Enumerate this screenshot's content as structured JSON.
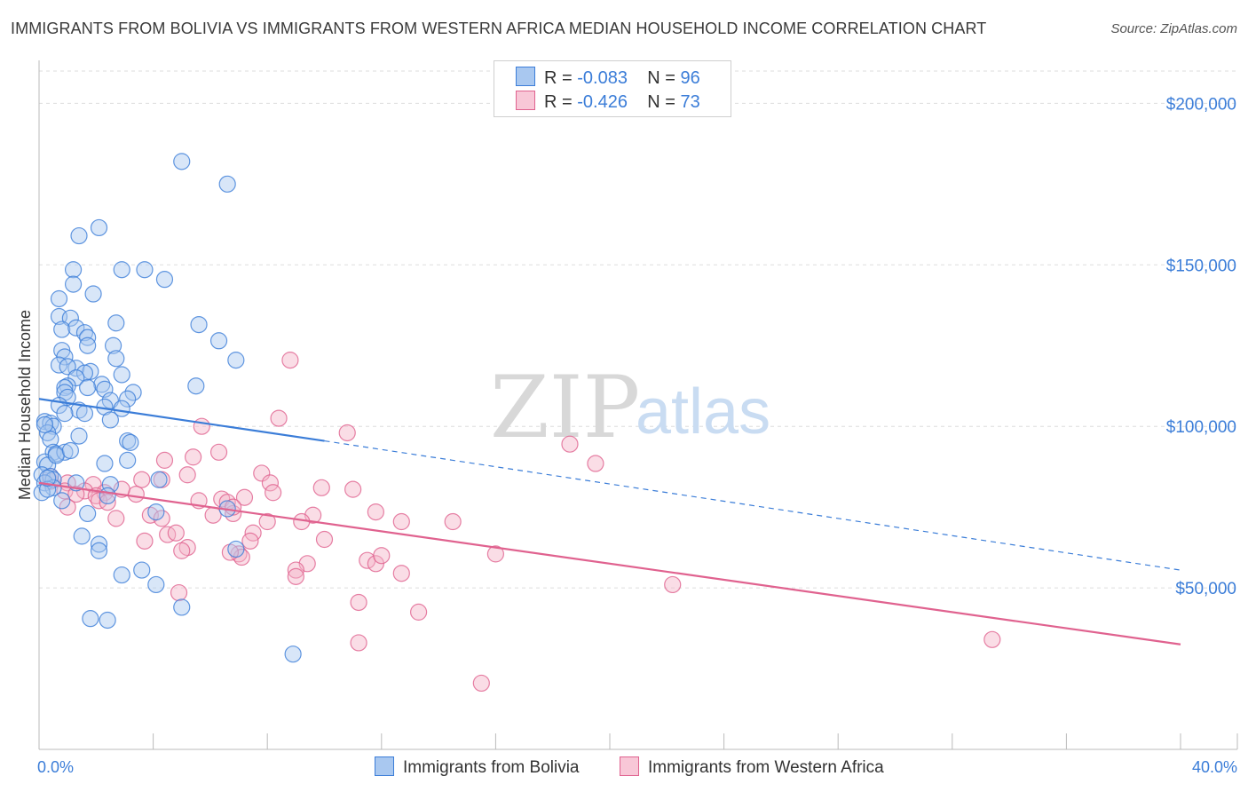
{
  "title": "IMMIGRANTS FROM BOLIVIA VS IMMIGRANTS FROM WESTERN AFRICA MEDIAN HOUSEHOLD INCOME CORRELATION CHART",
  "source": "Source: ZipAtlas.com",
  "watermark": {
    "zip": "ZIP",
    "atlas": "atlas"
  },
  "legend": {
    "rows": [
      {
        "r_label": "R =",
        "r_value": "-0.083",
        "n_label": "N =",
        "n_value": "96"
      },
      {
        "r_label": "R =",
        "r_value": "-0.426",
        "n_label": "N =",
        "n_value": "73"
      }
    ]
  },
  "bottom_legend": {
    "bolivia": "Immigrants from Bolivia",
    "wafrica": "Immigrants from Western Africa"
  },
  "colors": {
    "blue": "#3b7dd8",
    "blue_fill": "#a9c8f0",
    "pink": "#e0628f",
    "pink_fill": "#f4b3c8",
    "grid": "#dddddd"
  },
  "chart_data": {
    "type": "scatter",
    "title": "IMMIGRANTS FROM BOLIVIA VS IMMIGRANTS FROM WESTERN AFRICA MEDIAN HOUSEHOLD INCOME CORRELATION CHART",
    "ylabel": "Median Household Income",
    "xlabel": "",
    "xlim": [
      0,
      40
    ],
    "ylim": [
      0,
      210000
    ],
    "x_tick_labels": [
      "0.0%",
      "40.0%"
    ],
    "y_tick_labels": [
      "$50,000",
      "$100,000",
      "$150,000",
      "$200,000"
    ],
    "y_ticks": [
      50000,
      100000,
      150000,
      200000
    ],
    "grid": true,
    "legend_position": "top-center",
    "series": [
      {
        "name": "Immigrants from Bolivia",
        "color": "#3b7dd8",
        "trend": {
          "x": [
            0,
            10
          ],
          "y": [
            108500,
            95500
          ],
          "dashed_extension_to": [
            40,
            55500
          ]
        },
        "points": [
          [
            5.0,
            182000
          ],
          [
            6.6,
            175000
          ],
          [
            2.1,
            161500
          ],
          [
            1.4,
            159000
          ],
          [
            1.2,
            148500
          ],
          [
            2.9,
            148500
          ],
          [
            3.7,
            148500
          ],
          [
            4.4,
            145500
          ],
          [
            1.2,
            144000
          ],
          [
            0.7,
            139500
          ],
          [
            1.9,
            141000
          ],
          [
            0.7,
            134000
          ],
          [
            1.1,
            133500
          ],
          [
            2.7,
            132000
          ],
          [
            5.6,
            131500
          ],
          [
            0.8,
            130000
          ],
          [
            1.3,
            130500
          ],
          [
            1.6,
            129000
          ],
          [
            1.7,
            127500
          ],
          [
            6.3,
            126500
          ],
          [
            1.7,
            125000
          ],
          [
            2.6,
            125000
          ],
          [
            0.8,
            123500
          ],
          [
            2.7,
            121000
          ],
          [
            0.9,
            121500
          ],
          [
            6.9,
            120500
          ],
          [
            0.7,
            119000
          ],
          [
            1.3,
            118000
          ],
          [
            1.0,
            118500
          ],
          [
            1.8,
            117000
          ],
          [
            1.6,
            116500
          ],
          [
            2.9,
            116000
          ],
          [
            1.3,
            115000
          ],
          [
            1.0,
            112500
          ],
          [
            2.2,
            113000
          ],
          [
            0.9,
            112000
          ],
          [
            1.7,
            112000
          ],
          [
            2.3,
            111500
          ],
          [
            5.5,
            112500
          ],
          [
            0.9,
            110500
          ],
          [
            3.3,
            110500
          ],
          [
            1.0,
            109000
          ],
          [
            2.5,
            108000
          ],
          [
            3.1,
            108500
          ],
          [
            0.7,
            106500
          ],
          [
            2.3,
            106000
          ],
          [
            2.9,
            105500
          ],
          [
            1.4,
            105000
          ],
          [
            0.9,
            104000
          ],
          [
            1.6,
            104000
          ],
          [
            2.5,
            102000
          ],
          [
            0.2,
            101500
          ],
          [
            0.4,
            101000
          ],
          [
            0.5,
            100000
          ],
          [
            0.3,
            98000
          ],
          [
            1.4,
            97000
          ],
          [
            0.4,
            96000
          ],
          [
            3.1,
            95500
          ],
          [
            3.2,
            95000
          ],
          [
            0.5,
            92000
          ],
          [
            0.6,
            91500
          ],
          [
            0.9,
            92000
          ],
          [
            2.3,
            88500
          ],
          [
            3.1,
            89500
          ],
          [
            0.2,
            89000
          ],
          [
            0.3,
            88000
          ],
          [
            0.1,
            85000
          ],
          [
            0.4,
            84500
          ],
          [
            0.5,
            83500
          ],
          [
            4.2,
            83500
          ],
          [
            0.2,
            82500
          ],
          [
            1.3,
            82500
          ],
          [
            2.5,
            82000
          ],
          [
            0.5,
            81000
          ],
          [
            0.1,
            79500
          ],
          [
            2.4,
            78500
          ],
          [
            0.8,
            77000
          ],
          [
            1.7,
            73000
          ],
          [
            4.1,
            73500
          ],
          [
            6.6,
            74500
          ],
          [
            1.5,
            66000
          ],
          [
            2.1,
            63500
          ],
          [
            6.9,
            62000
          ],
          [
            2.1,
            61500
          ],
          [
            2.9,
            54000
          ],
          [
            3.6,
            55500
          ],
          [
            4.1,
            51000
          ],
          [
            5.0,
            44000
          ],
          [
            1.8,
            40500
          ],
          [
            2.4,
            40000
          ],
          [
            8.9,
            29500
          ],
          [
            0.3,
            80500
          ],
          [
            0.6,
            91000
          ],
          [
            1.1,
            92500
          ],
          [
            0.2,
            100500
          ],
          [
            0.3,
            84000
          ]
        ]
      },
      {
        "name": "Immigrants from Western Africa",
        "color": "#e0628f",
        "trend": {
          "x": [
            0,
            40
          ],
          "y": [
            82500,
            32500
          ]
        },
        "points": [
          [
            8.8,
            120500
          ],
          [
            8.4,
            102500
          ],
          [
            5.7,
            100000
          ],
          [
            10.8,
            98000
          ],
          [
            18.6,
            94500
          ],
          [
            6.3,
            92000
          ],
          [
            5.4,
            90500
          ],
          [
            4.4,
            89500
          ],
          [
            19.5,
            88500
          ],
          [
            7.8,
            85500
          ],
          [
            5.2,
            85000
          ],
          [
            3.6,
            83500
          ],
          [
            4.3,
            83500
          ],
          [
            8.1,
            82500
          ],
          [
            0.4,
            83000
          ],
          [
            1.0,
            82500
          ],
          [
            1.9,
            82000
          ],
          [
            11.0,
            80500
          ],
          [
            9.9,
            81000
          ],
          [
            8.2,
            79500
          ],
          [
            0.9,
            80000
          ],
          [
            1.6,
            80000
          ],
          [
            2.3,
            79500
          ],
          [
            3.4,
            79000
          ],
          [
            2.0,
            78500
          ],
          [
            6.4,
            77500
          ],
          [
            5.6,
            77000
          ],
          [
            7.2,
            78000
          ],
          [
            2.1,
            77000
          ],
          [
            6.6,
            76500
          ],
          [
            2.4,
            76500
          ],
          [
            1.0,
            75000
          ],
          [
            11.8,
            73500
          ],
          [
            9.6,
            72500
          ],
          [
            6.8,
            73000
          ],
          [
            3.9,
            72500
          ],
          [
            4.3,
            71500
          ],
          [
            6.1,
            72500
          ],
          [
            2.7,
            71500
          ],
          [
            12.7,
            70500
          ],
          [
            14.5,
            70500
          ],
          [
            8.0,
            70500
          ],
          [
            9.2,
            70500
          ],
          [
            7.5,
            67000
          ],
          [
            4.5,
            66500
          ],
          [
            7.4,
            64500
          ],
          [
            10.0,
            65000
          ],
          [
            3.7,
            64500
          ],
          [
            5.2,
            62500
          ],
          [
            5.0,
            61500
          ],
          [
            7.0,
            60500
          ],
          [
            16.0,
            60500
          ],
          [
            7.1,
            59500
          ],
          [
            11.5,
            58500
          ],
          [
            11.8,
            57500
          ],
          [
            9.4,
            57500
          ],
          [
            9.0,
            55500
          ],
          [
            12.7,
            54500
          ],
          [
            9.0,
            53500
          ],
          [
            22.2,
            51000
          ],
          [
            4.9,
            48500
          ],
          [
            11.2,
            45500
          ],
          [
            13.3,
            42500
          ],
          [
            11.2,
            33000
          ],
          [
            33.4,
            34000
          ],
          [
            15.5,
            20500
          ],
          [
            6.7,
            61000
          ],
          [
            2.9,
            80500
          ],
          [
            6.8,
            75000
          ],
          [
            12.0,
            60000
          ],
          [
            1.3,
            79000
          ],
          [
            0.4,
            84500
          ],
          [
            4.8,
            67000
          ]
        ]
      }
    ]
  }
}
